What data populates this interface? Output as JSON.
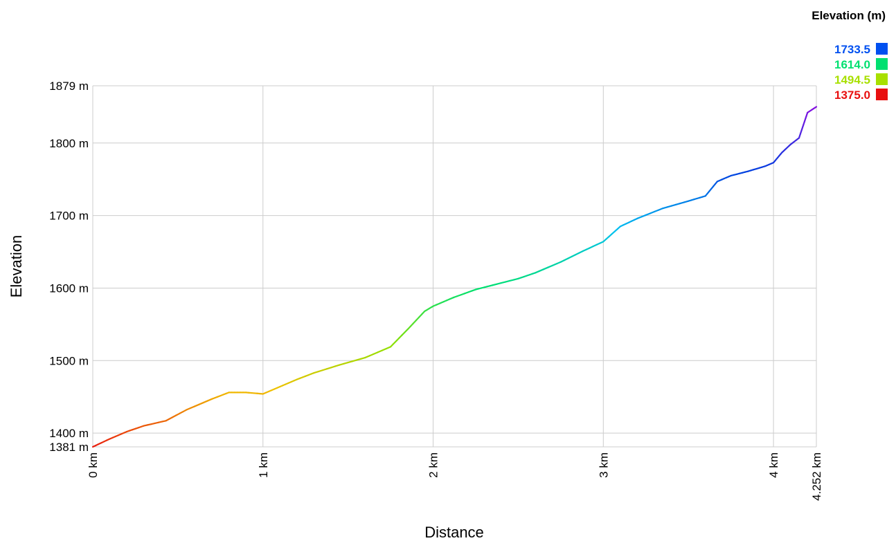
{
  "chart_data": {
    "type": "line",
    "xlabel": "Distance",
    "ylabel": "Elevation",
    "xlim": [
      0,
      4.252
    ],
    "ylim": [
      1381,
      1879
    ],
    "x_unit": "km",
    "y_unit": "m",
    "x_ticks": [
      {
        "value": 0,
        "label": "0 km"
      },
      {
        "value": 1,
        "label": "1 km"
      },
      {
        "value": 2,
        "label": "2 km"
      },
      {
        "value": 3,
        "label": "3 km"
      },
      {
        "value": 4,
        "label": "4 km"
      },
      {
        "value": 4.252,
        "label": "4.252 km"
      }
    ],
    "y_ticks": [
      {
        "value": 1381,
        "label": "1381 m"
      },
      {
        "value": 1400,
        "label": "1400 m"
      },
      {
        "value": 1500,
        "label": "1500 m"
      },
      {
        "value": 1600,
        "label": "1600 m"
      },
      {
        "value": 1700,
        "label": "1700 m"
      },
      {
        "value": 1800,
        "label": "1800 m"
      },
      {
        "value": 1879,
        "label": "1879 m"
      }
    ],
    "grid": true,
    "legend": {
      "title": "Elevation (m)",
      "placement": "top-right",
      "entries": [
        {
          "label": "1733.5",
          "color": "#0050f0"
        },
        {
          "label": "1614.0",
          "color": "#00e070"
        },
        {
          "label": "1494.5",
          "color": "#a8e000"
        },
        {
          "label": "1375.0",
          "color": "#e81010"
        }
      ]
    },
    "color_scale": {
      "stops": [
        {
          "value": 1375,
          "color": "#e81010"
        },
        {
          "value": 1460,
          "color": "#f0c000"
        },
        {
          "value": 1520,
          "color": "#90e000"
        },
        {
          "value": 1600,
          "color": "#00e070"
        },
        {
          "value": 1680,
          "color": "#00c0f0"
        },
        {
          "value": 1760,
          "color": "#0040e0"
        },
        {
          "value": 1879,
          "color": "#b000e0"
        }
      ]
    },
    "series": [
      {
        "points": [
          [
            0,
            1381
          ],
          [
            0.1,
            1392
          ],
          [
            0.2,
            1402
          ],
          [
            0.3,
            1410
          ],
          [
            0.43,
            1417
          ],
          [
            0.55,
            1432
          ],
          [
            0.7,
            1447
          ],
          [
            0.8,
            1456
          ],
          [
            0.9,
            1456
          ],
          [
            1.0,
            1454
          ],
          [
            1.1,
            1464
          ],
          [
            1.2,
            1474
          ],
          [
            1.3,
            1483
          ],
          [
            1.45,
            1494
          ],
          [
            1.6,
            1504
          ],
          [
            1.75,
            1519
          ],
          [
            1.85,
            1543
          ],
          [
            1.95,
            1568
          ],
          [
            2.0,
            1575
          ],
          [
            2.12,
            1587
          ],
          [
            2.25,
            1598
          ],
          [
            2.35,
            1604
          ],
          [
            2.5,
            1613
          ],
          [
            2.6,
            1621
          ],
          [
            2.75,
            1636
          ],
          [
            2.88,
            1651
          ],
          [
            3.0,
            1664
          ],
          [
            3.1,
            1685
          ],
          [
            3.2,
            1696
          ],
          [
            3.35,
            1710
          ],
          [
            3.5,
            1720
          ],
          [
            3.6,
            1727
          ],
          [
            3.67,
            1747
          ],
          [
            3.75,
            1755
          ],
          [
            3.85,
            1761
          ],
          [
            3.95,
            1768
          ],
          [
            4.0,
            1773
          ],
          [
            4.05,
            1787
          ],
          [
            4.1,
            1798
          ],
          [
            4.15,
            1807
          ],
          [
            4.2,
            1842
          ],
          [
            4.252,
            1850
          ]
        ]
      }
    ]
  }
}
